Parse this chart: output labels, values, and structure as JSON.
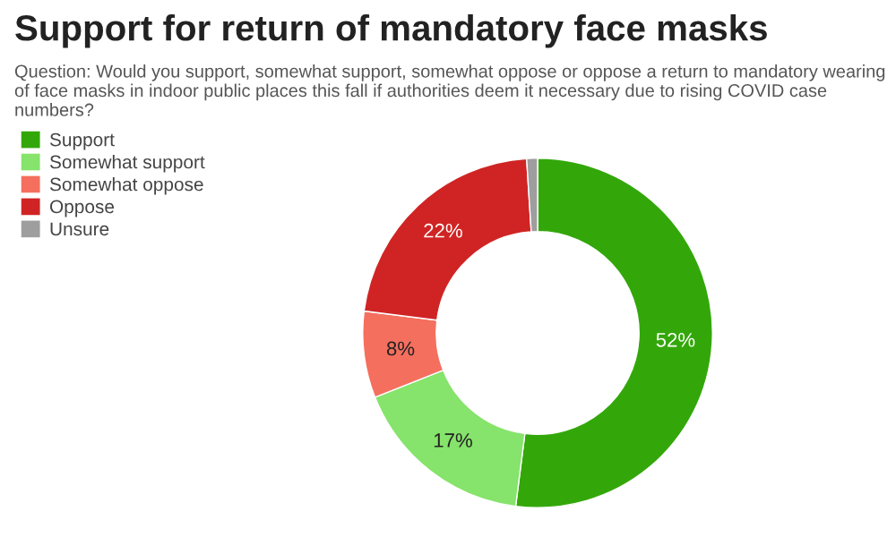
{
  "chart_data": {
    "type": "donut",
    "title": "Support for return of mandatory face masks",
    "subtitle": "Question: Would you support, somewhat support, somewhat oppose or oppose a return to mandatory wearing of face masks in indoor public places this fall if authorities deem it necessary due to rising COVID case numbers?",
    "categories": [
      "Support",
      "Somewhat support",
      "Somewhat oppose",
      "Oppose",
      "Unsure"
    ],
    "values": [
      52,
      17,
      8,
      22,
      1
    ],
    "colors": [
      "#33a70a",
      "#86e36b",
      "#f56f5e",
      "#d02424",
      "#9e9e9e"
    ],
    "value_labels": [
      "52%",
      "17%",
      "8%",
      "22%",
      null
    ],
    "legend": "top left"
  }
}
